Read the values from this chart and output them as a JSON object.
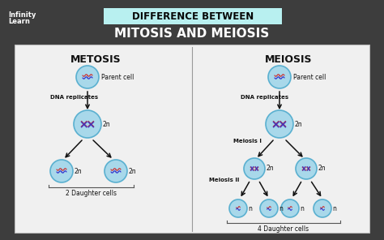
{
  "bg_color": "#3d3d3d",
  "title_box_color": "#b8f0f0",
  "title_box_text": "DIFFERENCE BETWEEN",
  "title_sub_text": "MITOSIS AND MEIOSIS",
  "panel_bg": "#f0f0f0",
  "left_title": "METOSIS",
  "right_title": "MEIOSIS",
  "cell_fill": "#a8d8ea",
  "cell_edge": "#5ab0d0",
  "arrow_color": "#111111",
  "text_color": "#111111",
  "label_dna": "DNA replicates",
  "label_meiosis_I": "Meiosis I",
  "label_meiosis_II": "Meiosis II",
  "label_2n": "2n",
  "label_n": "n",
  "label_parent_cell": "Parent cell",
  "label_2_daughter": "2 Daughter cells",
  "label_4_daughter": "4 Daughter cells",
  "chr_red": "#cc3333",
  "chr_blue": "#3333cc"
}
